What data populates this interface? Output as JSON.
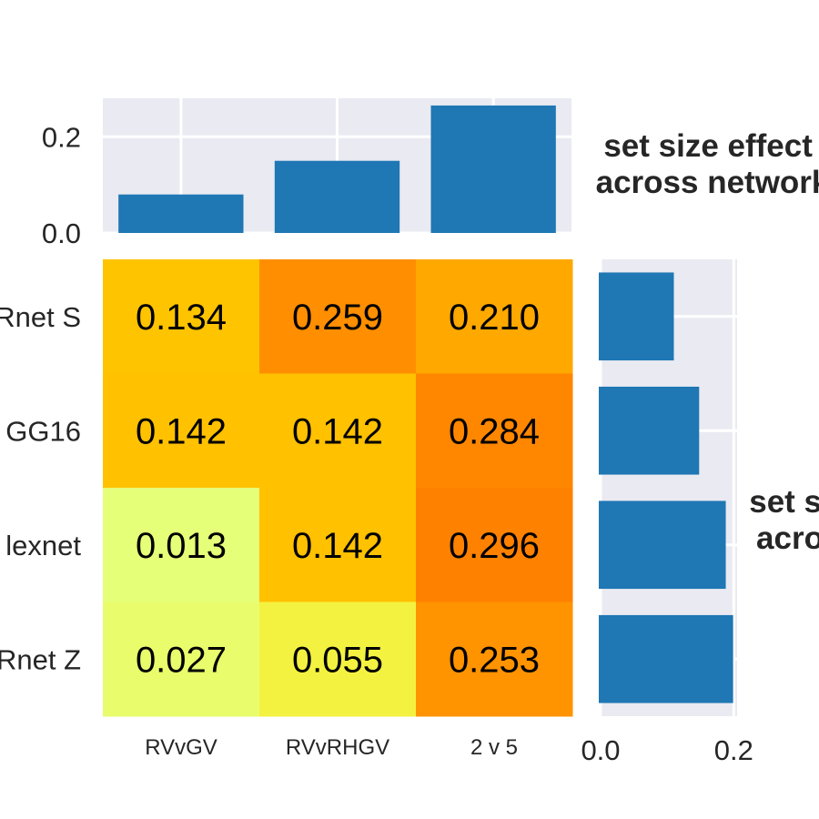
{
  "chart_data": [
    {
      "type": "heatmap",
      "columns": [
        "RVvGV",
        "RVvRHGV",
        "2 v 5"
      ],
      "rows": [
        "Rnet S",
        "GG16",
        "lexnet",
        "Rnet Z"
      ],
      "values": [
        [
          0.134,
          0.259,
          0.21
        ],
        [
          0.142,
          0.142,
          0.284
        ],
        [
          0.013,
          0.142,
          0.296
        ],
        [
          0.027,
          0.055,
          0.253
        ]
      ],
      "labels": [
        [
          "0.134",
          "0.259",
          "0.210"
        ],
        [
          "0.142",
          "0.142",
          "0.284"
        ],
        [
          "0.013",
          "0.142",
          "0.296"
        ],
        [
          "0.027",
          "0.055",
          "0.253"
        ]
      ],
      "cell_colors": [
        [
          "#ffc400",
          "#ff8f00",
          "#ffa800"
        ],
        [
          "#ffc100",
          "#ffc100",
          "#ff8700"
        ],
        [
          "#e6ff78",
          "#ffc100",
          "#ff8100"
        ],
        [
          "#e9fc6c",
          "#f4f241",
          "#ff9300"
        ]
      ]
    },
    {
      "type": "bar",
      "orientation": "vertical",
      "title": "set size effect\nacross network",
      "categories": [
        "RVvGV",
        "RVvRHGV",
        "2 v 5"
      ],
      "values": [
        0.08,
        0.15,
        0.265
      ],
      "ylim": [
        0,
        0.28
      ],
      "yticks": [
        0.0,
        0.2
      ],
      "ytick_labels": [
        "0.0",
        "0.2"
      ],
      "grid": true
    },
    {
      "type": "bar",
      "orientation": "horizontal",
      "title": "set s\nacro",
      "categories": [
        "Rnet S",
        "GG16",
        "lexnet",
        "Rnet Z"
      ],
      "values": [
        0.11,
        0.148,
        0.188,
        0.199
      ],
      "xlim": [
        0,
        0.205
      ],
      "xticks": [
        0.0,
        0.2
      ],
      "xtick_labels": [
        "0.0",
        "0.2"
      ],
      "grid": true
    }
  ],
  "colors": {
    "bar": "#1f77b4",
    "axes_background": "#eaeaf2",
    "grid": "#ffffff",
    "text": "#262626"
  }
}
